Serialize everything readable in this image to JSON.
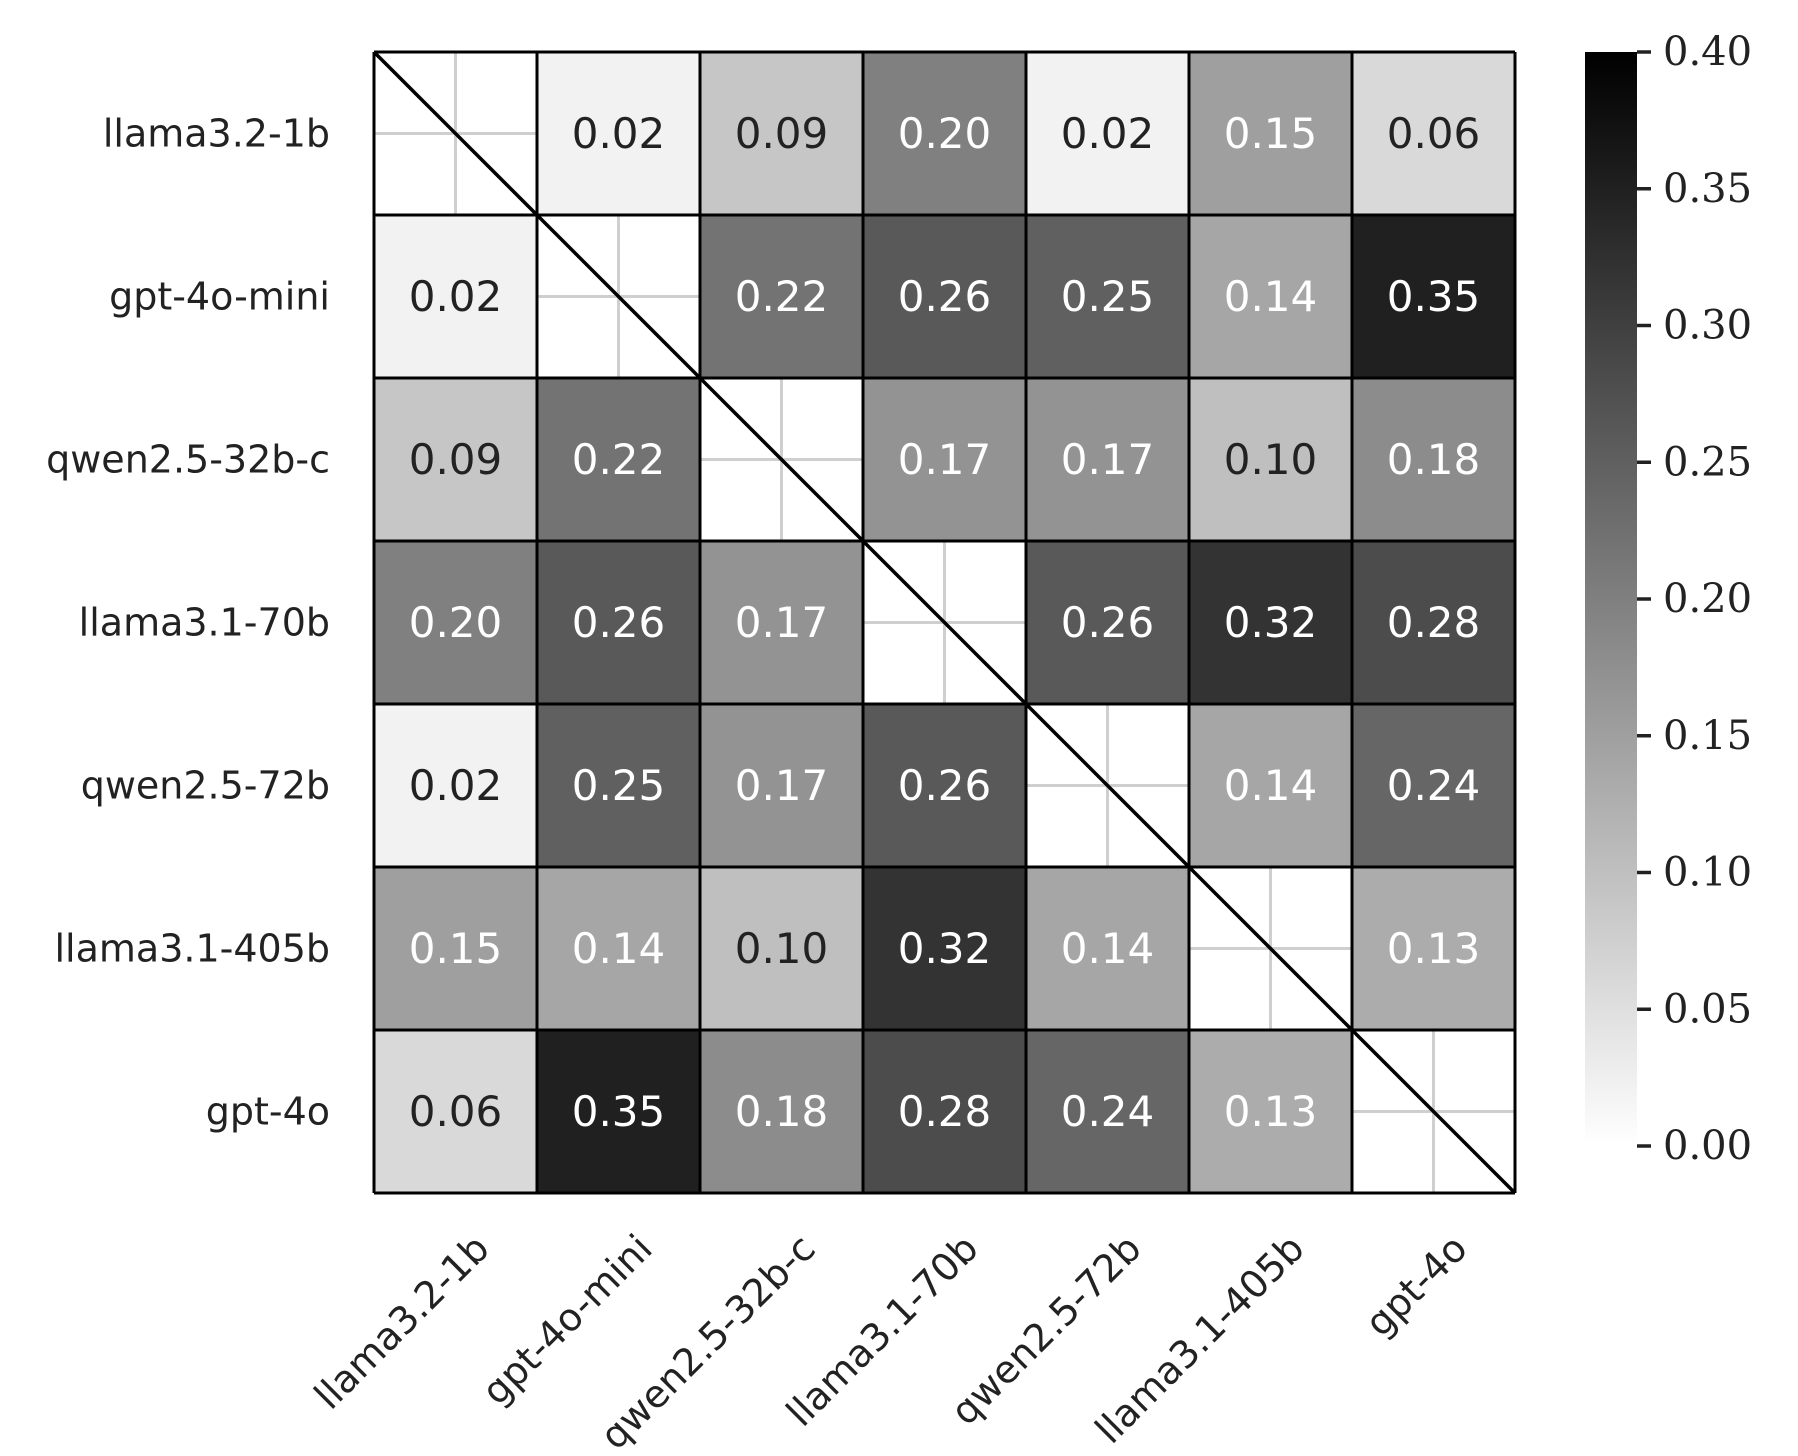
{
  "chart_data": {
    "type": "heatmap",
    "row_labels": [
      "llama3.2-1b",
      "gpt-4o-mini",
      "qwen2.5-32b-c",
      "llama3.1-70b",
      "qwen2.5-72b",
      "llama3.1-405b",
      "gpt-4o"
    ],
    "col_labels": [
      "llama3.2-1b",
      "gpt-4o-mini",
      "qwen2.5-32b-c",
      "llama3.1-70b",
      "qwen2.5-72b",
      "llama3.1-405b",
      "gpt-4o"
    ],
    "values": [
      [
        null,
        0.02,
        0.09,
        0.2,
        0.02,
        0.15,
        0.06
      ],
      [
        0.02,
        null,
        0.22,
        0.26,
        0.25,
        0.14,
        0.35
      ],
      [
        0.09,
        0.22,
        null,
        0.17,
        0.17,
        0.1,
        0.18
      ],
      [
        0.2,
        0.26,
        0.17,
        null,
        0.26,
        0.32,
        0.28
      ],
      [
        0.02,
        0.25,
        0.17,
        0.26,
        null,
        0.14,
        0.24
      ],
      [
        0.15,
        0.14,
        0.1,
        0.32,
        0.14,
        null,
        0.13
      ],
      [
        0.06,
        0.35,
        0.18,
        0.28,
        0.24,
        0.13,
        null
      ]
    ],
    "value_format_decimals": 2,
    "colorbar": {
      "range": [
        0.0,
        0.4
      ],
      "ticks": [
        0.0,
        0.05,
        0.1,
        0.15,
        0.2,
        0.25,
        0.3,
        0.35,
        0.4
      ],
      "tick_labels": [
        "0.00",
        "0.05",
        "0.10",
        "0.15",
        "0.20",
        "0.25",
        "0.30",
        "0.35",
        "0.40"
      ],
      "colormap": "greys",
      "low_color": "#ffffff",
      "high_color": "#000000",
      "position": "right"
    },
    "diagonal": "blank with diagonal line",
    "title": "",
    "xlabel": "",
    "ylabel": "",
    "colors": {
      "cell_border": "#000000",
      "diagonal_grid": "#cfcfcf",
      "text_dark": "#222222",
      "text_light": "#ffffff"
    }
  }
}
